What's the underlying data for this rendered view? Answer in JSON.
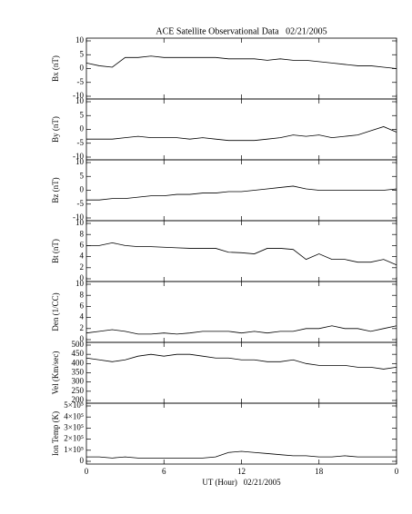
{
  "chart_data": [
    {
      "type": "line",
      "title": "ACE Satellite Observational Data   02/21/2005",
      "ylabel": "Bx (nT)",
      "color": "#000000",
      "xlim": [
        0,
        24
      ],
      "ylim": [
        -10,
        10
      ],
      "yticks": [
        -10,
        -5,
        0,
        5,
        10
      ],
      "x": [
        0,
        1,
        2,
        3,
        4,
        5,
        6,
        7,
        8,
        9,
        10,
        11,
        12,
        13,
        14,
        15,
        16,
        17,
        18,
        19,
        20,
        21,
        22,
        23,
        24
      ],
      "values": [
        2,
        1,
        0.5,
        4,
        4,
        4.5,
        4,
        4,
        4,
        4,
        4,
        3.5,
        3.5,
        3.5,
        3,
        3.5,
        3,
        3,
        2.5,
        2,
        1.5,
        1,
        1,
        0.5,
        0
      ]
    },
    {
      "type": "line",
      "ylabel": "By (nT)",
      "color": "#000000",
      "xlim": [
        0,
        24
      ],
      "ylim": [
        -10,
        10
      ],
      "yticks": [
        -10,
        -5,
        0,
        5,
        10
      ],
      "x": [
        0,
        1,
        2,
        3,
        4,
        5,
        6,
        7,
        8,
        9,
        10,
        11,
        12,
        13,
        14,
        15,
        16,
        17,
        18,
        19,
        20,
        21,
        22,
        23,
        24
      ],
      "values": [
        -3.5,
        -3.5,
        -3.5,
        -3,
        -2.5,
        -3,
        -3,
        -3,
        -3.5,
        -3,
        -3.5,
        -4,
        -4,
        -4,
        -3.5,
        -3,
        -2,
        -2.5,
        -2,
        -3,
        -2.5,
        -2,
        -0.5,
        1,
        -1
      ]
    },
    {
      "type": "line",
      "ylabel": "Bz (nT)",
      "color": "#000000",
      "xlim": [
        0,
        24
      ],
      "ylim": [
        -10,
        10
      ],
      "yticks": [
        -10,
        -5,
        0,
        5,
        10
      ],
      "x": [
        0,
        1,
        2,
        3,
        4,
        5,
        6,
        7,
        8,
        9,
        10,
        11,
        12,
        13,
        14,
        15,
        16,
        17,
        18,
        19,
        20,
        21,
        22,
        23,
        24
      ],
      "values": [
        -3.5,
        -3.5,
        -3,
        -3,
        -2.5,
        -2,
        -2,
        -1.5,
        -1.5,
        -1,
        -1,
        -0.5,
        -0.5,
        0,
        0.5,
        1,
        1.5,
        0.5,
        0,
        0,
        0,
        0,
        0,
        0,
        0.5
      ]
    },
    {
      "type": "line",
      "ylabel": "Bt (nT)",
      "color": "#000000",
      "xlim": [
        0,
        24
      ],
      "ylim": [
        0,
        10
      ],
      "yticks": [
        0,
        2,
        4,
        6,
        8,
        10
      ],
      "x": [
        0,
        1,
        2,
        3,
        4,
        5,
        6,
        7,
        8,
        9,
        10,
        11,
        12,
        13,
        14,
        15,
        16,
        17,
        18,
        19,
        20,
        21,
        22,
        23,
        24
      ],
      "values": [
        6,
        6,
        6.5,
        6,
        5.8,
        5.8,
        5.7,
        5.6,
        5.5,
        5.5,
        5.5,
        4.8,
        4.7,
        4.5,
        5.5,
        5.5,
        5.3,
        3.5,
        4.5,
        3.5,
        3.5,
        3,
        3,
        3.5,
        2.5
      ]
    },
    {
      "type": "line",
      "ylabel": "Den (1/CC)",
      "color": "#000000",
      "xlim": [
        0,
        24
      ],
      "ylim": [
        0,
        10
      ],
      "yticks": [
        0,
        2,
        4,
        6,
        8,
        10
      ],
      "x": [
        0,
        1,
        2,
        3,
        4,
        5,
        6,
        7,
        8,
        9,
        10,
        11,
        12,
        13,
        14,
        15,
        16,
        17,
        18,
        19,
        20,
        21,
        22,
        23,
        24
      ],
      "values": [
        1.2,
        1.5,
        1.8,
        1.5,
        1,
        1,
        1.2,
        1,
        1.2,
        1.5,
        1.5,
        1.5,
        1.2,
        1.5,
        1.2,
        1.5,
        1.5,
        2,
        2,
        2.5,
        2,
        2,
        1.5,
        2,
        2.5
      ]
    },
    {
      "type": "line",
      "ylabel": "Vel (Km/sec)",
      "color": "#000000",
      "xlim": [
        0,
        24
      ],
      "ylim": [
        200,
        500
      ],
      "yticks": [
        200,
        250,
        300,
        350,
        400,
        450,
        500
      ],
      "x": [
        0,
        1,
        2,
        3,
        4,
        5,
        6,
        7,
        8,
        9,
        10,
        11,
        12,
        13,
        14,
        15,
        16,
        17,
        18,
        19,
        20,
        21,
        22,
        23,
        24
      ],
      "values": [
        430,
        420,
        410,
        420,
        440,
        450,
        440,
        450,
        450,
        440,
        430,
        430,
        420,
        420,
        410,
        410,
        420,
        400,
        390,
        390,
        390,
        380,
        380,
        370,
        380
      ]
    },
    {
      "type": "line",
      "ylabel": "Ion Temp (K)",
      "xlabel": "UT (Hour)   02/21/2005",
      "color": "#000000",
      "xlim": [
        0,
        24
      ],
      "ylim": [
        0,
        500000
      ],
      "yticks": [
        0,
        {
          "value": 100000,
          "label": "1×10⁵"
        },
        {
          "value": 200000,
          "label": "2×10⁵"
        },
        {
          "value": 300000,
          "label": "3×10⁵"
        },
        {
          "value": 400000,
          "label": "4×10⁵"
        },
        {
          "value": 500000,
          "label": "5×10⁵"
        }
      ],
      "xticks": [
        0,
        6,
        12,
        18,
        {
          "value": 24,
          "label": "0"
        }
      ],
      "x": [
        0,
        1,
        2,
        3,
        4,
        5,
        6,
        7,
        8,
        9,
        10,
        11,
        12,
        13,
        14,
        15,
        16,
        17,
        18,
        19,
        20,
        21,
        22,
        23,
        24
      ],
      "values": [
        40000,
        40000,
        30000,
        40000,
        30000,
        30000,
        30000,
        30000,
        30000,
        30000,
        40000,
        80000,
        90000,
        80000,
        70000,
        60000,
        50000,
        50000,
        40000,
        40000,
        50000,
        40000,
        40000,
        40000,
        40000
      ]
    }
  ]
}
